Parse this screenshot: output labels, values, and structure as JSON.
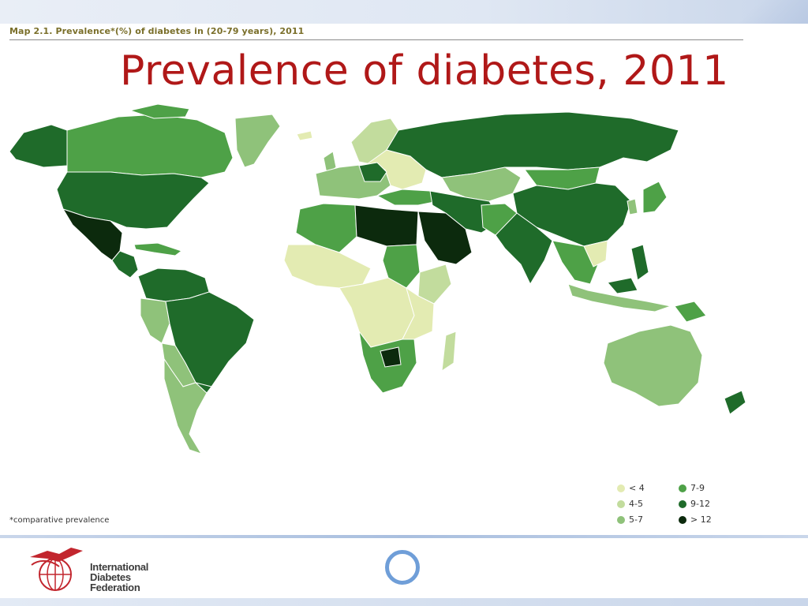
{
  "map_caption": "Map 2.1. Prevalence*(%) of diabetes in (20-79 years), 2011",
  "title": "Prevalence of diabetes, 2011",
  "footnote": "*comparative prevalence",
  "colors": {
    "lt4": "#e3ebb2",
    "c4_5": "#c2dc9d",
    "c5_7": "#8fc27a",
    "c7_9": "#4ea147",
    "c9_12": "#1f6b2a",
    "gt12": "#0c2a0d",
    "title": "#b01818",
    "accent": "#6f9ed8"
  },
  "legend": [
    {
      "label": "< 4",
      "color": "#e3ebb2"
    },
    {
      "label": "4-5",
      "color": "#c2dc9d"
    },
    {
      "label": "5-7",
      "color": "#8fc27a"
    },
    {
      "label": "7-9",
      "color": "#4ea147"
    },
    {
      "label": "9-12",
      "color": "#1f6b2a"
    },
    {
      "label": "> 12",
      "color": "#0c2a0d"
    }
  ],
  "logo": {
    "line1": "International",
    "line2": "Diabetes",
    "line3": "Federation"
  },
  "nav": {
    "icon": "circle-nav-icon"
  }
}
